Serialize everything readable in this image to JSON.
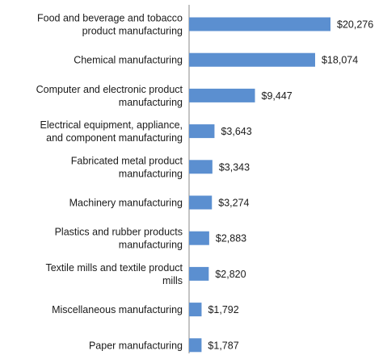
{
  "chart_data": {
    "type": "bar",
    "orientation": "horizontal",
    "categories": [
      [
        "Food and beverage and tobacco",
        "product manufacturing"
      ],
      [
        "Chemical manufacturing"
      ],
      [
        "Computer and electronic product",
        "manufacturing"
      ],
      [
        "Electrical equipment, appliance,",
        "and component manufacturing"
      ],
      [
        "Fabricated metal product",
        "manufacturing"
      ],
      [
        "Machinery manufacturing"
      ],
      [
        "Plastics and rubber products",
        "manufacturing"
      ],
      [
        "Textile mills and textile product",
        "mills"
      ],
      [
        "Miscellaneous manufacturing"
      ],
      [
        "Paper manufacturing"
      ]
    ],
    "values": [
      20276,
      18074,
      9447,
      3643,
      3343,
      3274,
      2883,
      2820,
      1792,
      1787
    ],
    "value_labels": [
      "$20,276",
      "$18,074",
      "$9,447",
      "$3,643",
      "$3,343",
      "$3,274",
      "$2,883",
      "$2,820",
      "$1,792",
      "$1,787"
    ],
    "xlim": [
      0,
      22000
    ],
    "grid": false,
    "bar_color": "#5b8fd0"
  }
}
